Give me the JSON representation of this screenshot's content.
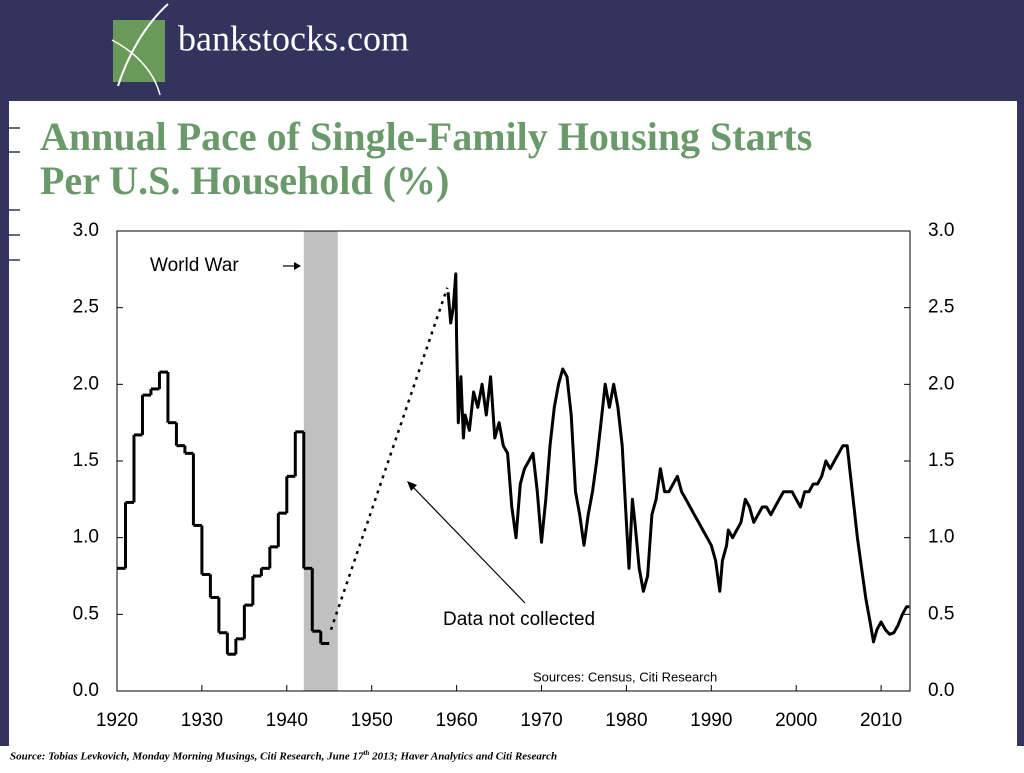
{
  "header": {
    "logo_text": "bankstocks.com"
  },
  "chart_data": {
    "type": "line",
    "title_lines": [
      "Annual Pace of Single-Family Housing Starts",
      "Per U.S. Household (%)"
    ],
    "xlim": [
      1920,
      2013.4
    ],
    "xticks": [
      1920,
      1930,
      1940,
      1950,
      1960,
      1970,
      1980,
      1990,
      2000,
      2010
    ],
    "ylim": [
      0,
      3
    ],
    "yticks": [
      {
        "value": 0,
        "label": "0.0"
      },
      0.5,
      {
        "value": 1,
        "label": "1.0"
      },
      1.5,
      {
        "value": 2,
        "label": "2.0"
      },
      2.5,
      {
        "value": 3,
        "label": "3.0"
      }
    ],
    "y2lim": [
      0,
      3
    ],
    "y2ticks": [
      {
        "value": 0,
        "label": "0.0"
      },
      0.5,
      {
        "value": 1,
        "label": "1.0"
      },
      1.5,
      {
        "value": 2,
        "label": "2.0"
      },
      2.5,
      {
        "value": 3,
        "label": "3.0"
      }
    ],
    "shaded_spans": [
      [
        1942,
        1946
      ]
    ],
    "shade_color": "#c0c0c0",
    "series": [
      {
        "style": "step",
        "color": "#000000",
        "x": [
          1920,
          1921,
          1922,
          1923,
          1924,
          1925,
          1926,
          1927,
          1928,
          1929,
          1930,
          1931,
          1932,
          1933,
          1934,
          1935,
          1936,
          1937,
          1938,
          1939,
          1940,
          1941,
          1942,
          1943,
          1944
        ],
        "values": [
          0.8,
          1.23,
          1.67,
          1.93,
          1.97,
          2.08,
          1.75,
          1.6,
          1.55,
          1.08,
          0.76,
          0.61,
          0.38,
          0.24,
          0.34,
          0.56,
          0.75,
          0.8,
          0.94,
          1.16,
          1.4,
          1.69,
          0.8,
          0.39,
          0.31
        ]
      },
      {
        "style": "dotted",
        "color": "#000000",
        "x": [
          1945.2,
          1958.9
        ],
        "values": [
          0.4,
          2.63
        ]
      },
      {
        "style": "solid",
        "color": "#000000",
        "x": [
          1959,
          1959.3,
          1959.6,
          1959.9,
          1960.0,
          1960.2,
          1960.5,
          1960.8,
          1961,
          1961.5,
          1962,
          1962.5,
          1963,
          1963.5,
          1964,
          1964.5,
          1965,
          1965.5,
          1966,
          1966.5,
          1967,
          1967.5,
          1968,
          1968.5,
          1969,
          1969.5,
          1970,
          1970.5,
          1971,
          1971.5,
          1972,
          1972.5,
          1973,
          1973.5,
          1974,
          1974.5,
          1975,
          1975.5,
          1976,
          1976.5,
          1977,
          1977.5,
          1978,
          1978.5,
          1979,
          1979.5,
          1980,
          1980.3,
          1980.7,
          1981,
          1981.5,
          1982,
          1982.5,
          1983,
          1983.5,
          1984,
          1984.5,
          1985,
          1985.5,
          1986,
          1986.5,
          1987,
          1987.5,
          1988,
          1988.5,
          1989,
          1989.5,
          1990,
          1990.5,
          1991,
          1991.3,
          1991.8,
          1992,
          1992.5,
          1993,
          1993.5,
          1994,
          1994.5,
          1995,
          1995.5,
          1996,
          1996.5,
          1997,
          1997.5,
          1998,
          1998.5,
          1999,
          1999.5,
          2000,
          2000.5,
          2001,
          2001.5,
          2002,
          2002.5,
          2003,
          2003.5,
          2004,
          2004.5,
          2005,
          2005.5,
          2006,
          2006.3,
          2006.8,
          2007.2,
          2007.7,
          2008.2,
          2008.7,
          2009.1,
          2009.5,
          2010,
          2010.5,
          2011,
          2011.5,
          2012,
          2012.5,
          2013,
          2013.3
        ],
        "values": [
          2.6,
          2.4,
          2.5,
          2.72,
          2.3,
          1.75,
          2.05,
          1.65,
          1.8,
          1.7,
          1.95,
          1.85,
          2.0,
          1.8,
          2.05,
          1.65,
          1.75,
          1.6,
          1.55,
          1.2,
          1.0,
          1.35,
          1.45,
          1.5,
          1.55,
          1.3,
          0.97,
          1.25,
          1.6,
          1.85,
          2.0,
          2.1,
          2.05,
          1.8,
          1.3,
          1.15,
          0.95,
          1.15,
          1.3,
          1.5,
          1.75,
          2.0,
          1.85,
          2.0,
          1.85,
          1.6,
          1.1,
          0.8,
          1.25,
          1.1,
          0.8,
          0.65,
          0.75,
          1.15,
          1.25,
          1.45,
          1.3,
          1.3,
          1.35,
          1.4,
          1.3,
          1.25,
          1.2,
          1.15,
          1.1,
          1.05,
          1.0,
          0.95,
          0.85,
          0.65,
          0.85,
          0.95,
          1.05,
          1.0,
          1.05,
          1.1,
          1.25,
          1.2,
          1.1,
          1.15,
          1.2,
          1.2,
          1.15,
          1.2,
          1.25,
          1.3,
          1.3,
          1.3,
          1.25,
          1.2,
          1.3,
          1.3,
          1.35,
          1.35,
          1.4,
          1.5,
          1.45,
          1.5,
          1.55,
          1.6,
          1.6,
          1.45,
          1.2,
          1.0,
          0.8,
          0.6,
          0.45,
          0.32,
          0.4,
          0.45,
          0.4,
          0.37,
          0.38,
          0.43,
          0.5,
          0.55,
          0.55
        ]
      }
    ],
    "annotations": [
      "World War",
      "Data not collected",
      "Sources: Census, Citi Research"
    ],
    "source_note": [
      "Source: Tobias Levkovich, Monday Morning Musings, Citi Research, June 17",
      "th",
      " 2013; Haver Analytics and Citi Research"
    ]
  }
}
